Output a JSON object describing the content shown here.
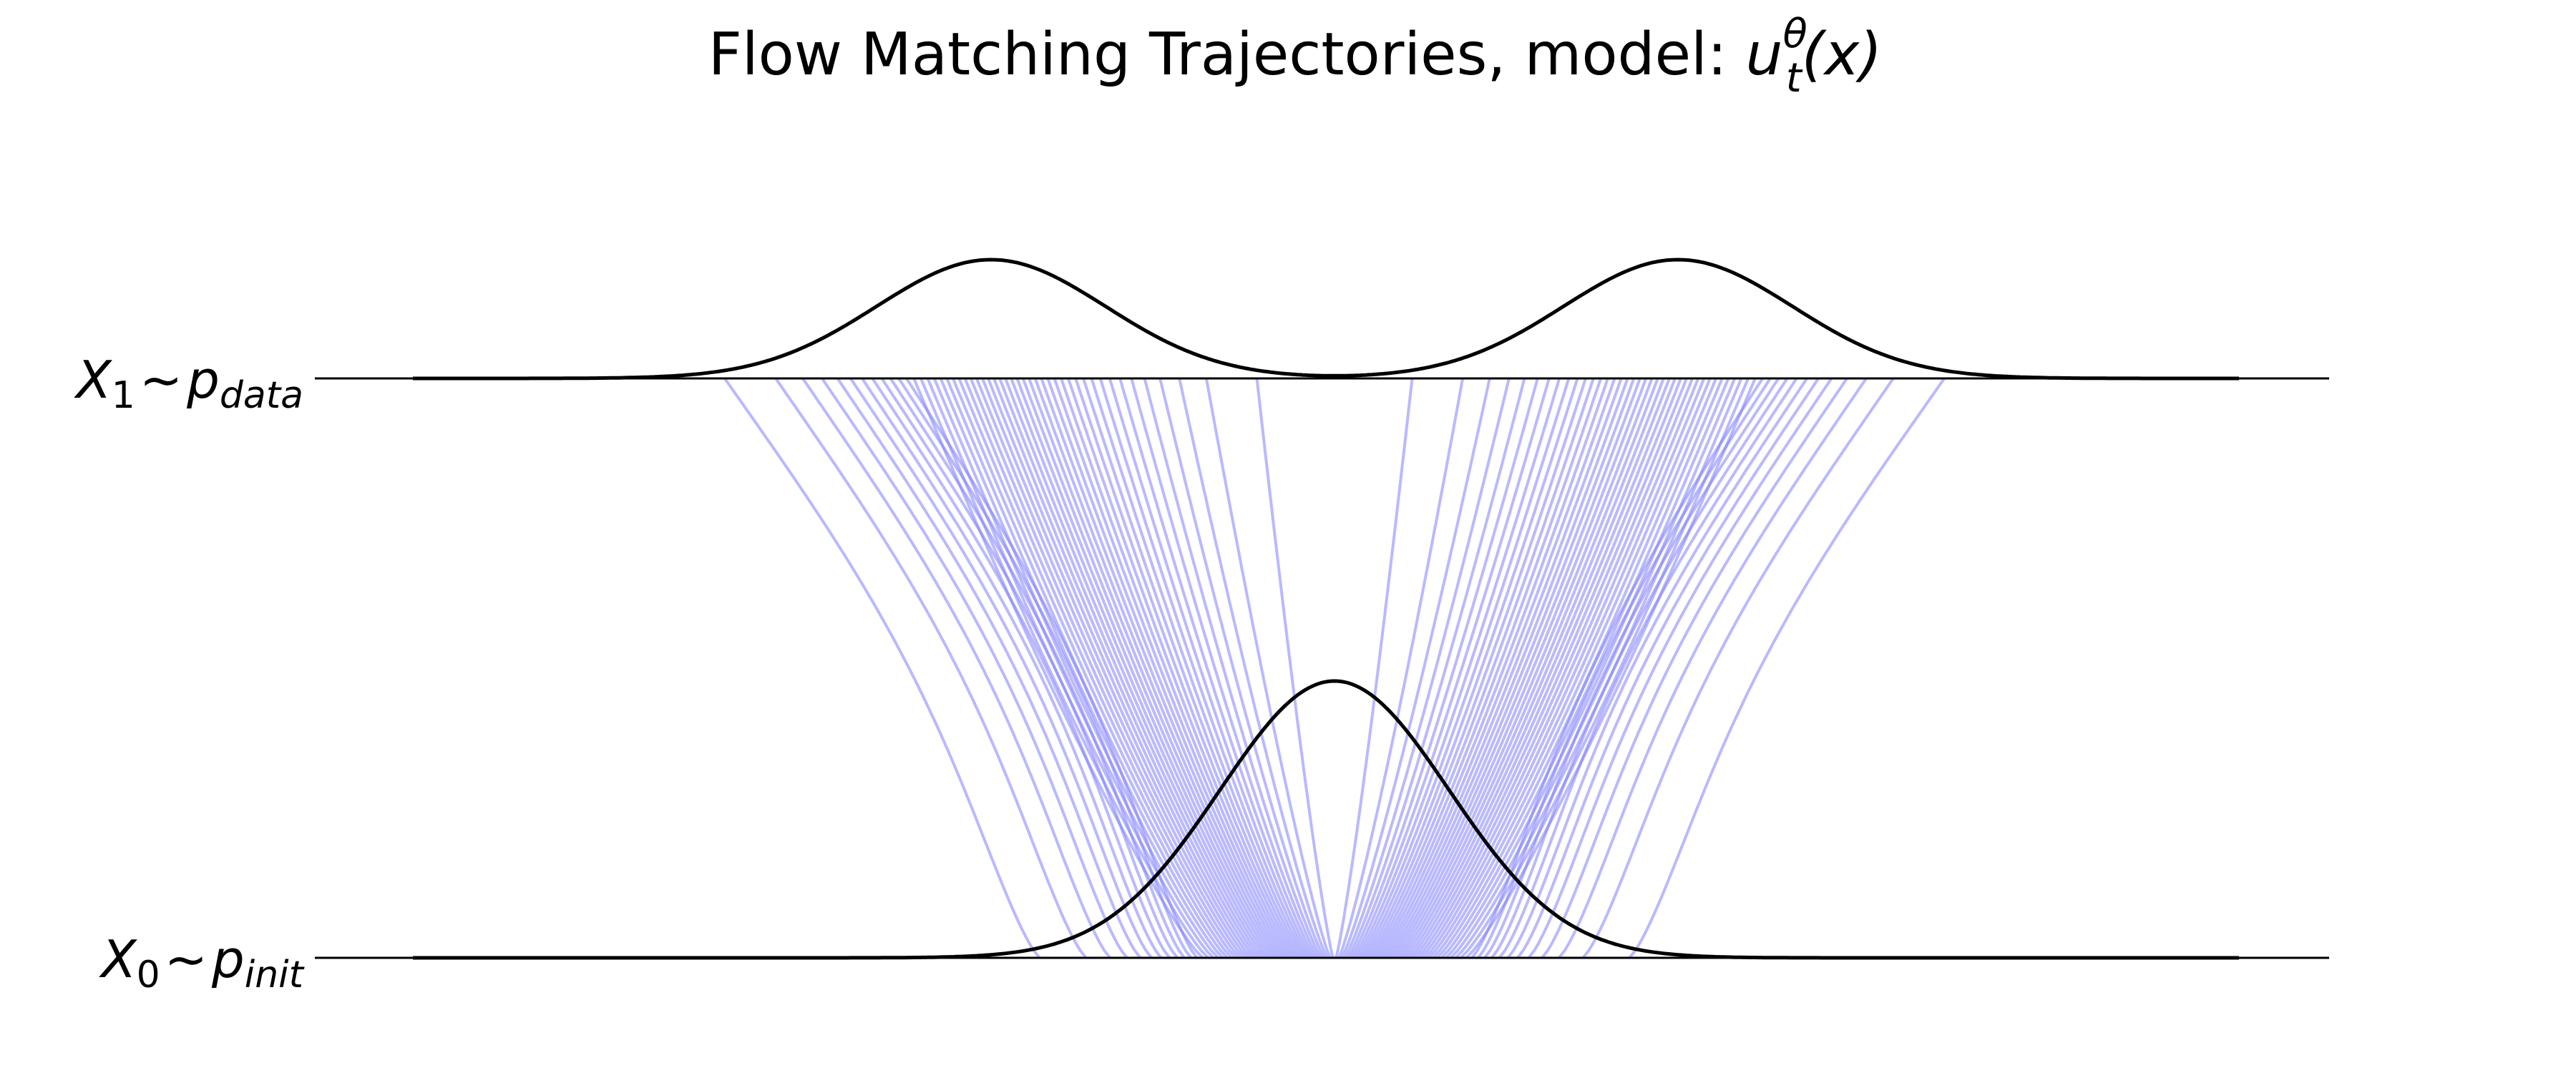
{
  "title": {
    "text": "Flow Matching Trajectories, model: ",
    "model_symbol": "u",
    "model_superscript": "θ",
    "model_subscript": "t",
    "model_argument": "(x)"
  },
  "labels": {
    "top": {
      "var": "X",
      "var_sub": "1",
      "tilde": "∼",
      "dist": "p",
      "dist_sub": "data"
    },
    "bottom": {
      "var": "X",
      "var_sub": "0",
      "tilde": "∼",
      "dist": "p",
      "dist_sub": "init"
    }
  },
  "chart_data": {
    "type": "line",
    "x_range": [
      -4.0,
      4.0
    ],
    "init_distribution": {
      "kind": "gaussian",
      "mean": 0.0,
      "std": 0.5
    },
    "data_distribution": {
      "kind": "gaussian-mixture",
      "components": [
        {
          "mean": -1.5,
          "std": 0.5,
          "weight": 0.5
        },
        {
          "mean": 1.5,
          "std": 0.5,
          "weight": 0.5
        }
      ]
    },
    "trajectory_count": 100,
    "grid": false,
    "axes_visible": false
  },
  "colors": {
    "trajectory": "#8080ff",
    "density": "#000000",
    "baseline": "#000000"
  }
}
